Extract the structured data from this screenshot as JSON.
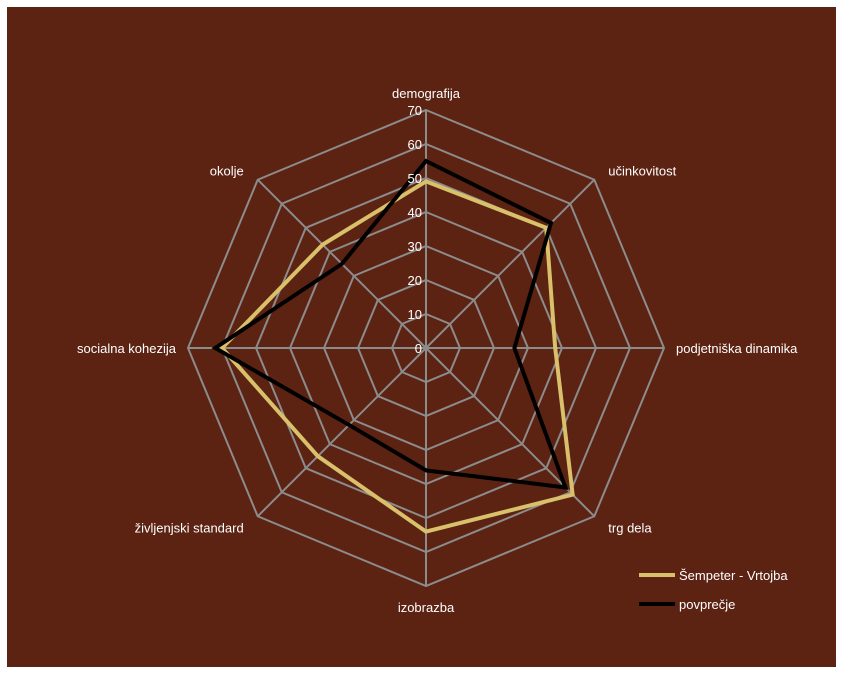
{
  "colors": {
    "background": "#5c2212",
    "grid": "#8c8c8c",
    "text": "#ffffff"
  },
  "chart_data": {
    "type": "radar",
    "title": "",
    "axes": [
      "demografija",
      "učinkovitost",
      "podjetniška dinamika",
      "trg dela",
      "izobrazba",
      "življenjski standard",
      "socialna kohezija",
      "okolje"
    ],
    "ticks": [
      "0",
      "10",
      "20",
      "30",
      "40",
      "50",
      "60",
      "70"
    ],
    "rlim": [
      0,
      70
    ],
    "grid": true,
    "legend_position": "bottom-right",
    "series": [
      {
        "name": "Šempeter - Vrtojba",
        "color": "#d9c06b",
        "values": [
          49,
          50,
          38,
          61,
          54,
          45,
          60,
          43
        ]
      },
      {
        "name": "povprečje",
        "color": "#000000",
        "values": [
          55,
          52,
          26,
          58,
          36,
          32,
          62,
          35
        ]
      }
    ]
  }
}
